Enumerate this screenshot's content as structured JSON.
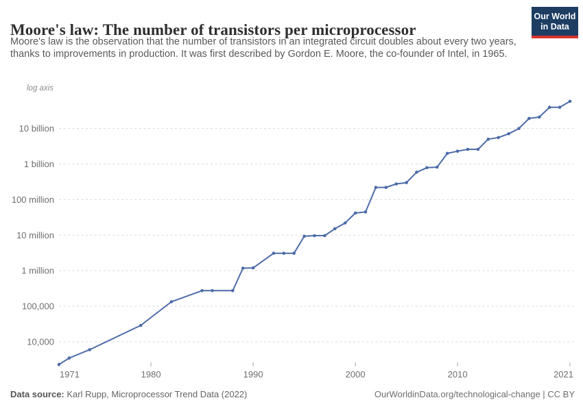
{
  "header": {
    "title": "Moore's law: The number of transistors per microprocessor",
    "subtitle": "Moore's law is the observation that the number of transistors in an integrated circuit doubles about every two years, thanks to improvements in production. It was first described by Gordon E. Moore, the co-founder of Intel, in 1965.",
    "logo": {
      "line1": "Our World",
      "line2": "in Data",
      "bg_color": "#1d3d63",
      "bar_color": "#d6352e"
    }
  },
  "chart_data": {
    "type": "line",
    "title": "Moore's law: The number of transistors per microprocessor",
    "subtitle": "Moore's law is the observation that the number of transistors in an integrated circuit doubles about every two years, thanks to improvements in production. It was first described by Gordon E. Moore, the co-founder of Intel, in 1965.",
    "legend_position": "none",
    "grid": "horizontal-dashed",
    "x_axis": {
      "label": "",
      "range": [
        1971,
        2021
      ],
      "ticks": [
        {
          "year": 1971,
          "label": "1971"
        },
        {
          "year": 1980,
          "label": "1980"
        },
        {
          "year": 1990,
          "label": "1990"
        },
        {
          "year": 2000,
          "label": "2000"
        },
        {
          "year": 2010,
          "label": "2010"
        },
        {
          "year": 2021,
          "label": "2021"
        }
      ]
    },
    "y_axis": {
      "scale": "log",
      "note": "log axis",
      "range": [
        2300,
        58200000000
      ],
      "ticks": [
        {
          "value": 10000,
          "label": "10,000"
        },
        {
          "value": 100000,
          "label": "100,000"
        },
        {
          "value": 1000000,
          "label": "1 million"
        },
        {
          "value": 10000000,
          "label": "10 million"
        },
        {
          "value": 100000000,
          "label": "100 million"
        },
        {
          "value": 1000000000,
          "label": "1 billion"
        },
        {
          "value": 10000000000,
          "label": "10 billion"
        }
      ]
    },
    "colors": {
      "line": "#4c6ba8",
      "grid": "#dadada",
      "tick": "#a8a8a8",
      "axis_text": "#6e6e6e",
      "note_text": "#8a8a8a"
    },
    "series": [
      {
        "name": "Transistors per microprocessor",
        "color": "#4c6ba8",
        "points": [
          [
            1971,
            2300
          ],
          [
            1972,
            3500
          ],
          [
            1974,
            6000
          ],
          [
            1979,
            29000
          ],
          [
            1982,
            134000
          ],
          [
            1985,
            275000
          ],
          [
            1986,
            275000
          ],
          [
            1988,
            275000
          ],
          [
            1989,
            1180000
          ],
          [
            1990,
            1200000
          ],
          [
            1992,
            3100000
          ],
          [
            1993,
            3100000
          ],
          [
            1994,
            3100000
          ],
          [
            1995,
            9300000
          ],
          [
            1996,
            9700000
          ],
          [
            1997,
            9700000
          ],
          [
            1998,
            15200000
          ],
          [
            1999,
            22000000
          ],
          [
            2000,
            42000000
          ],
          [
            2001,
            45000000
          ],
          [
            2002,
            220000000
          ],
          [
            2003,
            220000000
          ],
          [
            2004,
            276000000
          ],
          [
            2005,
            300000000
          ],
          [
            2006,
            590000000
          ],
          [
            2007,
            789000000
          ],
          [
            2008,
            820000000
          ],
          [
            2009,
            2000000000
          ],
          [
            2010,
            2300000000
          ],
          [
            2011,
            2600000000
          ],
          [
            2012,
            2600000000
          ],
          [
            2013,
            5000000000
          ],
          [
            2014,
            5560000000
          ],
          [
            2015,
            7100000000
          ],
          [
            2016,
            10000000000
          ],
          [
            2017,
            19200000000
          ],
          [
            2018,
            21000000000
          ],
          [
            2019,
            39540000000
          ],
          [
            2020,
            39540000000
          ],
          [
            2021,
            58200000000
          ]
        ]
      }
    ]
  },
  "footer": {
    "source_label": "Data source:",
    "source_text": " Karl Rupp, Microprocessor Trend Data (2022)",
    "credit": "OurWorldinData.org/technological-change | CC BY"
  }
}
